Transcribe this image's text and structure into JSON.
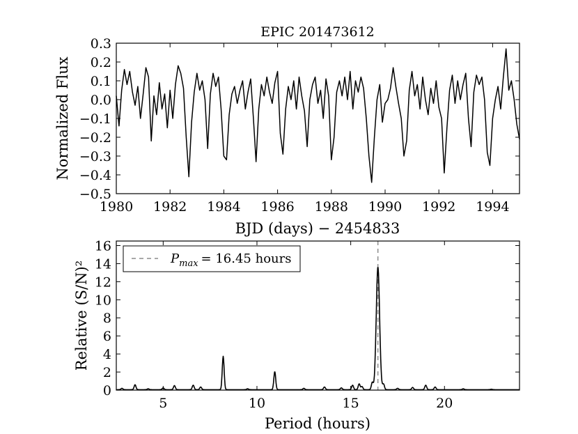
{
  "chart_data": [
    {
      "type": "line",
      "title": "EPIC 201473612",
      "xlabel": "BJD (days) − 2454833",
      "ylabel": "Normalized Flux",
      "xlim": [
        1980,
        1995
      ],
      "ylim": [
        -0.5,
        0.3
      ],
      "xticks": [
        "1980",
        "1982",
        "1984",
        "1986",
        "1988",
        "1990",
        "1992",
        "1994"
      ],
      "yticks": [
        "0.3",
        "0.2",
        "0.1",
        "0.0",
        "−0.1",
        "−0.2",
        "−0.3",
        "−0.4",
        "−0.5"
      ],
      "grid": false,
      "series": [
        {
          "color": "#000000",
          "x": [
            1980.0,
            1980.1,
            1980.2,
            1980.3,
            1980.4,
            1980.5,
            1980.6,
            1980.7,
            1980.8,
            1980.9,
            1981.0,
            1981.1,
            1981.2,
            1981.3,
            1981.4,
            1981.5,
            1981.6,
            1981.7,
            1981.8,
            1981.9,
            1982.0,
            1982.1,
            1982.2,
            1982.3,
            1982.4,
            1982.5,
            1982.6,
            1982.7,
            1982.8,
            1982.9,
            1983.0,
            1983.1,
            1983.2,
            1983.3,
            1983.4,
            1983.5,
            1983.6,
            1983.7,
            1983.8,
            1983.9,
            1984.0,
            1984.1,
            1984.2,
            1984.3,
            1984.4,
            1984.5,
            1984.6,
            1984.7,
            1984.8,
            1984.9,
            1985.0,
            1985.1,
            1985.2,
            1985.3,
            1985.4,
            1985.5,
            1985.6,
            1985.7,
            1985.8,
            1985.9,
            1986.0,
            1986.1,
            1986.2,
            1986.3,
            1986.4,
            1986.5,
            1986.6,
            1986.7,
            1986.8,
            1986.9,
            1987.0,
            1987.1,
            1987.2,
            1987.3,
            1987.4,
            1987.5,
            1987.6,
            1987.7,
            1987.8,
            1987.9,
            1988.0,
            1988.1,
            1988.2,
            1988.3,
            1988.4,
            1988.5,
            1988.6,
            1988.7,
            1988.8,
            1988.9,
            1989.0,
            1989.1,
            1989.2,
            1989.3,
            1989.4,
            1989.5,
            1989.6,
            1989.7,
            1989.8,
            1989.9,
            1990.0,
            1990.1,
            1990.2,
            1990.3,
            1990.4,
            1990.5,
            1990.6,
            1990.7,
            1990.8,
            1990.9,
            1991.0,
            1991.1,
            1991.2,
            1991.3,
            1991.4,
            1991.5,
            1991.6,
            1991.7,
            1991.8,
            1991.9,
            1992.0,
            1992.1,
            1992.2,
            1992.3,
            1992.4,
            1992.5,
            1992.6,
            1992.7,
            1992.8,
            1992.9,
            1993.0,
            1993.1,
            1993.2,
            1993.3,
            1993.4,
            1993.5,
            1993.6,
            1993.7,
            1993.8,
            1993.9,
            1994.0,
            1994.1,
            1994.2,
            1994.3,
            1994.4,
            1994.5,
            1994.6,
            1994.7,
            1994.8,
            1994.9,
            1995.0
          ],
          "y": [
            0.02,
            -0.14,
            0.05,
            0.16,
            0.08,
            0.15,
            0.04,
            -0.03,
            0.07,
            -0.1,
            0.03,
            0.17,
            0.12,
            -0.22,
            0.02,
            -0.08,
            0.09,
            -0.05,
            0.03,
            -0.15,
            0.05,
            -0.1,
            0.08,
            0.18,
            0.14,
            0.06,
            -0.2,
            -0.41,
            -0.12,
            0.04,
            0.14,
            0.05,
            0.1,
            0.0,
            -0.26,
            0.03,
            0.14,
            0.07,
            0.12,
            -0.05,
            -0.3,
            -0.32,
            -0.08,
            0.03,
            0.07,
            -0.02,
            0.05,
            0.1,
            -0.05,
            0.04,
            0.11,
            -0.1,
            -0.33,
            -0.05,
            0.08,
            0.02,
            0.12,
            0.04,
            -0.02,
            0.09,
            0.15,
            -0.18,
            -0.29,
            -0.05,
            0.07,
            0.0,
            0.1,
            -0.05,
            0.12,
            0.02,
            -0.06,
            -0.25,
            0.0,
            0.08,
            0.12,
            -0.02,
            0.05,
            -0.1,
            0.11,
            0.02,
            -0.32,
            -0.2,
            0.04,
            0.1,
            0.02,
            0.12,
            0.0,
            0.15,
            -0.05,
            0.1,
            0.04,
            0.12,
            0.06,
            -0.1,
            -0.3,
            -0.44,
            -0.2,
            0.0,
            0.08,
            -0.12,
            -0.02,
            0.0,
            0.06,
            0.17,
            0.07,
            -0.02,
            -0.1,
            -0.3,
            -0.22,
            0.05,
            0.15,
            0.02,
            0.08,
            -0.05,
            0.12,
            0.0,
            -0.08,
            0.06,
            -0.02,
            0.1,
            -0.04,
            -0.1,
            -0.39,
            -0.15,
            0.05,
            0.13,
            -0.02,
            0.1,
            0.0,
            0.08,
            0.14,
            -0.1,
            -0.25,
            0.04,
            0.13,
            0.08,
            0.12,
            0.0,
            -0.28,
            -0.35,
            -0.1,
            0.0,
            0.07,
            -0.05,
            0.12,
            0.27,
            0.05,
            0.1,
            0.0,
            -0.13,
            -0.21
          ]
        }
      ]
    },
    {
      "type": "line",
      "xlabel": "Period (hours)",
      "ylabel": "Relative (S/N)²",
      "xlim": [
        2.5,
        24
      ],
      "ylim": [
        0,
        16.5
      ],
      "xticks": [
        "5",
        "10",
        "15",
        "20"
      ],
      "yticks": [
        "0",
        "2",
        "4",
        "6",
        "8",
        "10",
        "12",
        "14",
        "16"
      ],
      "grid": false,
      "legend": {
        "placement": "top-left",
        "entries": [
          {
            "symbol": "P",
            "subscript": "max",
            "value_text": "= 16.45 hours"
          }
        ]
      },
      "vline": {
        "x": 16.45,
        "style": "dashed",
        "color": "#8c8c8c"
      },
      "series": [
        {
          "color": "#000000",
          "peaks": [
            {
              "x": 2.8,
              "y": 0.15
            },
            {
              "x": 3.5,
              "y": 0.55
            },
            {
              "x": 4.2,
              "y": 0.1
            },
            {
              "x": 5.0,
              "y": 0.2
            },
            {
              "x": 5.6,
              "y": 0.45
            },
            {
              "x": 6.6,
              "y": 0.5
            },
            {
              "x": 7.0,
              "y": 0.3
            },
            {
              "x": 8.2,
              "y": 3.7
            },
            {
              "x": 9.5,
              "y": 0.1
            },
            {
              "x": 10.95,
              "y": 2.0
            },
            {
              "x": 12.5,
              "y": 0.15
            },
            {
              "x": 13.6,
              "y": 0.3
            },
            {
              "x": 14.5,
              "y": 0.2
            },
            {
              "x": 15.1,
              "y": 0.5
            },
            {
              "x": 15.45,
              "y": 0.65
            },
            {
              "x": 15.6,
              "y": 0.35
            },
            {
              "x": 16.15,
              "y": 0.8
            },
            {
              "x": 16.45,
              "y": 13.6
            },
            {
              "x": 16.75,
              "y": 0.6
            },
            {
              "x": 17.5,
              "y": 0.15
            },
            {
              "x": 18.3,
              "y": 0.25
            },
            {
              "x": 19.0,
              "y": 0.5
            },
            {
              "x": 19.5,
              "y": 0.3
            },
            {
              "x": 21.0,
              "y": 0.1
            },
            {
              "x": 22.5,
              "y": 0.05
            }
          ]
        }
      ]
    }
  ]
}
